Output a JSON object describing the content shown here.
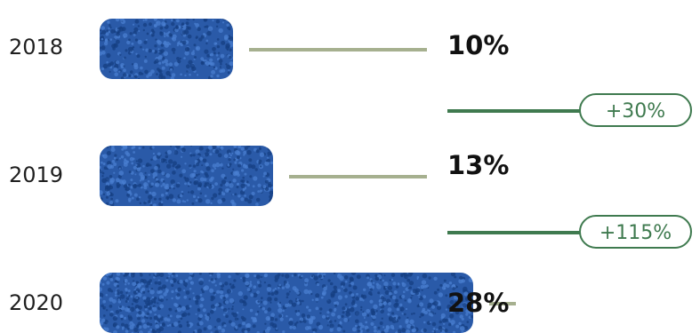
{
  "chart_data": {
    "type": "bar",
    "categories": [
      "2018",
      "2019",
      "2020"
    ],
    "values": [
      10,
      13,
      28
    ],
    "value_labels": [
      "10%",
      "13%",
      "28%"
    ],
    "changes": [
      {
        "from": "2018",
        "to": "2019",
        "label": "+30%"
      },
      {
        "from": "2019",
        "to": "2020",
        "label": "+115%"
      }
    ],
    "title": "",
    "xlabel": "",
    "ylabel": "",
    "grid": false,
    "legend": "none",
    "colors": {
      "bar_fill": "#2a5aa8",
      "connector": "#a6b08f",
      "growth": "#3f7a4f"
    }
  }
}
